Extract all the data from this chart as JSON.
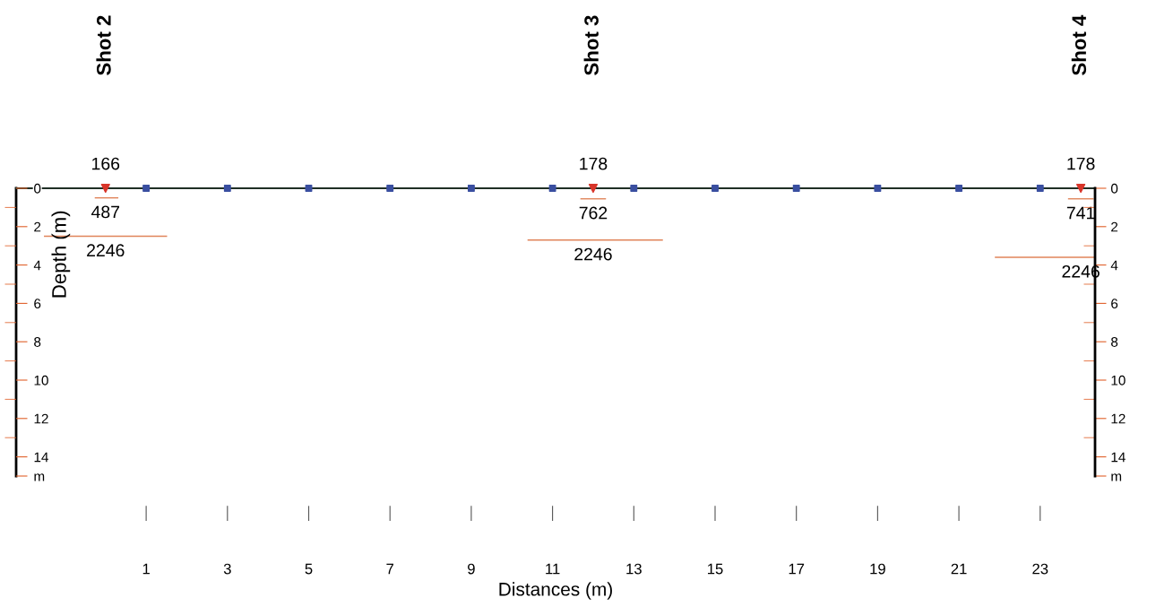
{
  "chart_data": {
    "type": "line",
    "xlabel": "Distances (m)",
    "ylabel": "Depth (m)",
    "xlim": [
      -2.2,
      24.35
    ],
    "ylim": [
      15,
      0
    ],
    "xticks": [
      1,
      3,
      5,
      7,
      9,
      11,
      13,
      15,
      17,
      19,
      21,
      23
    ],
    "yticks": [
      0,
      {
        "value": 1,
        "label": null
      },
      2,
      {
        "value": 3,
        "label": null
      },
      4,
      {
        "value": 5,
        "label": null
      },
      6,
      {
        "value": 7,
        "label": null
      },
      8,
      {
        "value": 9,
        "label": null
      },
      10,
      {
        "value": 11,
        "label": null
      },
      12,
      {
        "value": 13,
        "label": null
      },
      14,
      {
        "value": 15,
        "label": "m"
      }
    ],
    "y2lim": [
      15,
      0
    ],
    "y2ticks": [
      0,
      {
        "value": 1,
        "label": null
      },
      2,
      {
        "value": 3,
        "label": null
      },
      4,
      {
        "value": 5,
        "label": null
      },
      6,
      {
        "value": 7,
        "label": null
      },
      8,
      {
        "value": 9,
        "label": null
      },
      10,
      {
        "value": 11,
        "label": null
      },
      12,
      {
        "value": 13,
        "label": null
      },
      14,
      {
        "value": 15,
        "label": "m"
      }
    ],
    "grid": false,
    "legend": false,
    "series": [
      {
        "color": "#1f2f25",
        "x": [
          -2.2,
          24.35
        ],
        "values": [
          0,
          0
        ],
        "marker": "none"
      },
      {
        "type": "scatter",
        "color": "#3a4fa0",
        "x": [
          1,
          3,
          5,
          7,
          9,
          11,
          13,
          15,
          17,
          19,
          21,
          23
        ],
        "values": [
          0,
          0,
          0,
          0,
          0,
          0,
          0,
          0,
          0,
          0,
          0,
          0
        ],
        "marker": "square"
      },
      {
        "type": "scatter",
        "color": "#d8352a",
        "x": [
          0,
          12,
          24
        ],
        "values": [
          0,
          0,
          0
        ],
        "marker": "triangle"
      },
      {
        "type": "line",
        "color": "#e0845a",
        "x": [
          -0.25,
          0.3
        ],
        "values": [
          0.5,
          0.5
        ],
        "marker": "none"
      },
      {
        "type": "line",
        "color": "#e0845a",
        "x": [
          -1.5,
          1.5
        ],
        "values": [
          2.5,
          2.5
        ],
        "marker": "none"
      },
      {
        "type": "line",
        "color": "#e0845a",
        "x": [
          11.7,
          12.3
        ],
        "values": [
          0.55,
          0.55
        ],
        "marker": "none"
      },
      {
        "type": "line",
        "color": "#e0845a",
        "x": [
          10.4,
          13.7
        ],
        "values": [
          2.7,
          2.7
        ],
        "marker": "none"
      },
      {
        "type": "line",
        "color": "#e0845a",
        "x": [
          23.7,
          24.3
        ],
        "values": [
          0.55,
          0.55
        ],
        "marker": "none"
      },
      {
        "type": "line",
        "color": "#e0845a",
        "x": [
          21.9,
          24.35
        ],
        "values": [
          3.6,
          3.6
        ],
        "marker": "none"
      }
    ],
    "annotations": [
      "Shot 2",
      "Shot 3",
      "Shot 4",
      {
        "text": "166",
        "x": 0,
        "y": 0
      },
      {
        "text": "487",
        "x": 0,
        "y": 0.5
      },
      {
        "text": "2246",
        "x": 0,
        "y": 2.5
      },
      {
        "text": "178",
        "x": 12,
        "y": 0
      },
      {
        "text": "762",
        "x": 12,
        "y": 0.55
      },
      {
        "text": "2246",
        "x": 12,
        "y": 2.7
      },
      {
        "text": "178",
        "x": 24,
        "y": 0
      },
      {
        "text": "741",
        "x": 24,
        "y": 0.55
      },
      {
        "text": "2246",
        "x": 24,
        "y": 3.6
      }
    ]
  }
}
